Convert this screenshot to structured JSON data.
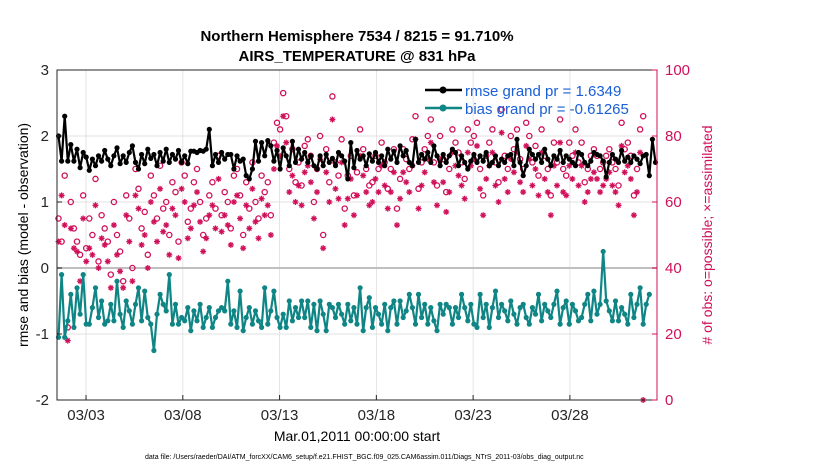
{
  "chart_data": {
    "type": "line",
    "title_line1": "Northern Hemisphere 7534 / 8215 = 91.710%",
    "title_line2": "AIRS_TEMPERATURE @ 831 hPa",
    "xlabel": "Mar.01,2011 00:00:00 start",
    "ylabel_left": "rmse and bias (model - observation)",
    "ylabel_right": "# of obs: o=possible; ×=assimilated",
    "footer": "data file: /Users/raeder/DAI/ATM_forcXX/CAM6_setup/f.e21.FHIST_BGC.f09_025.CAM6assim.011/Diags_NTrS_2011-03/obs_diag_output.nc",
    "xlim": [
      1.5,
      32.5
    ],
    "ylim_left": [
      -2,
      3
    ],
    "ylim_right": [
      0,
      100
    ],
    "x_tick_labels": [
      "03/03",
      "03/08",
      "03/13",
      "03/18",
      "03/23",
      "03/28"
    ],
    "x_tick_values": [
      3,
      8,
      13,
      18,
      23,
      28
    ],
    "y_left_ticks": [
      "-2",
      "-1",
      "0",
      "1",
      "2",
      "3"
    ],
    "y_left_tick_values": [
      -2,
      -1,
      0,
      1,
      2,
      3
    ],
    "y_right_ticks": [
      "0",
      "20",
      "40",
      "60",
      "80",
      "100"
    ],
    "y_right_tick_values": [
      0,
      20,
      40,
      60,
      80,
      100
    ],
    "legend": [
      {
        "name": "rmse",
        "label": "rmse grand pr = 1.6349"
      },
      {
        "name": "bias",
        "label": "bias grand pr = -0.61265"
      }
    ],
    "colors": {
      "rmse": "#000000",
      "bias": "#0f8585",
      "obs": "#d0105a",
      "zero": "#bfbfbf",
      "grid": "#dedede"
    },
    "series": [
      {
        "name": "rmse",
        "values": [
          2.0,
          1.62,
          2.3,
          1.62,
          1.87,
          1.62,
          1.8,
          1.52,
          1.75,
          1.68,
          1.48,
          1.65,
          1.55,
          1.7,
          1.62,
          1.78,
          1.65,
          1.55,
          1.7,
          1.82,
          1.58,
          1.7,
          1.6,
          1.75,
          1.85,
          1.6,
          1.5,
          1.72,
          1.58,
          1.8,
          1.66,
          1.72,
          1.55,
          1.75,
          1.62,
          1.8,
          1.6,
          1.72,
          1.65,
          1.78,
          1.6,
          1.7,
          1.58,
          1.77,
          1.77,
          1.75,
          1.78,
          1.77,
          1.8,
          2.1,
          1.55,
          1.72,
          1.6,
          1.75,
          1.65,
          1.72,
          1.72,
          1.5,
          1.7,
          1.62,
          1.65,
          1.4,
          1.35,
          1.5,
          1.92,
          1.62,
          1.9,
          1.7,
          1.93,
          1.85,
          1.62,
          1.78,
          1.5,
          1.82,
          1.7,
          1.55,
          1.92,
          1.6,
          1.8,
          1.65,
          1.75,
          1.6,
          1.7,
          1.55,
          1.5,
          1.7,
          1.55,
          1.72,
          1.6,
          1.66,
          1.55,
          1.75,
          1.7,
          1.62,
          1.35,
          1.9,
          1.52,
          1.78,
          1.65,
          1.7,
          1.55,
          1.73,
          1.62,
          1.75,
          1.6,
          1.7,
          1.55,
          1.8,
          1.65,
          1.77,
          1.6,
          1.85,
          1.7,
          1.78,
          1.6,
          1.55,
          1.95,
          1.6,
          1.72,
          1.65,
          1.75,
          1.6,
          1.85,
          1.7,
          1.55,
          1.72,
          1.6,
          1.7,
          1.8,
          1.75,
          1.55,
          1.7,
          1.6,
          1.5,
          1.62,
          1.72,
          1.6,
          1.7,
          1.62,
          1.75,
          1.55,
          1.6,
          1.7,
          1.55,
          1.65,
          1.6,
          1.7,
          1.72,
          1.55,
          1.95,
          1.6,
          1.4,
          1.55,
          1.8,
          1.72,
          1.65,
          1.72,
          1.6,
          1.8,
          1.65,
          1.55,
          1.7,
          1.65,
          1.78,
          1.6,
          1.7,
          1.65,
          1.6,
          1.55,
          1.75,
          1.72,
          1.6,
          1.55,
          1.62,
          1.75,
          1.72,
          1.7,
          1.62,
          1.38,
          1.6,
          1.72,
          1.65,
          1.6,
          1.78,
          1.62,
          1.68,
          1.6,
          1.7,
          1.65,
          1.58,
          1.7,
          1.72,
          1.4,
          1.95,
          1.6
        ]
      },
      {
        "name": "bias",
        "values": [
          -1.05,
          -0.1,
          -1.05,
          -0.8,
          -0.4,
          -0.9,
          -0.3,
          -0.7,
          -0.1,
          -0.85,
          -0.85,
          -0.6,
          -0.3,
          -0.75,
          -0.5,
          -0.85,
          -0.8,
          -0.55,
          -0.8,
          -0.2,
          -0.7,
          -0.9,
          -0.5,
          -0.65,
          -0.85,
          -0.55,
          -0.3,
          -0.8,
          -0.35,
          -0.75,
          -0.85,
          -1.25,
          -0.7,
          -0.4,
          -0.55,
          -0.65,
          -0.1,
          -0.85,
          -0.55,
          -0.85,
          -0.75,
          -0.8,
          -0.6,
          -0.95,
          -0.65,
          -0.8,
          -0.55,
          -0.9,
          -0.75,
          -0.6,
          -0.9,
          -0.75,
          -0.65,
          -0.6,
          -0.65,
          -0.2,
          -0.85,
          -0.65,
          -0.9,
          -0.35,
          -0.95,
          -0.75,
          -0.6,
          -0.85,
          -0.65,
          -0.8,
          -0.9,
          -0.3,
          -0.85,
          -0.65,
          -0.35,
          -0.75,
          -0.9,
          -0.7,
          -0.9,
          -0.5,
          -0.8,
          -0.6,
          -0.75,
          -0.5,
          -0.75,
          -0.5,
          -0.9,
          -0.55,
          -0.95,
          -0.5,
          -0.7,
          -0.95,
          -0.55,
          -0.6,
          -0.75,
          -0.55,
          -0.7,
          -0.85,
          -0.55,
          -0.8,
          -0.6,
          -0.85,
          -0.3,
          -0.95,
          -0.6,
          -0.45,
          -0.9,
          -0.6,
          -0.7,
          -0.85,
          -0.55,
          -0.95,
          -0.6,
          -0.5,
          -0.85,
          -0.5,
          -0.75,
          -0.65,
          -0.4,
          -0.6,
          -0.85,
          -0.4,
          -0.75,
          -0.55,
          -0.85,
          -0.6,
          -0.8,
          -0.95,
          -0.55,
          -0.7,
          -0.55,
          -0.6,
          -0.85,
          -0.6,
          -0.75,
          -0.4,
          -0.6,
          -0.8,
          -0.55,
          -0.85,
          -0.9,
          -0.4,
          -0.75,
          -0.55,
          -0.9,
          -0.6,
          -0.35,
          -0.75,
          -0.55,
          -0.65,
          -0.8,
          -0.5,
          -0.7,
          -0.85,
          -0.6,
          -0.55,
          -0.75,
          -0.85,
          -0.6,
          -0.7,
          -0.4,
          -0.8,
          -0.55,
          -0.65,
          -0.75,
          -0.55,
          -0.35,
          -0.85,
          -0.6,
          -0.5,
          -0.85,
          -0.55,
          -0.65,
          -0.8,
          -0.75,
          -0.55,
          -0.4,
          -0.8,
          -0.35,
          -0.7,
          -0.55,
          0.25,
          -0.5,
          -0.65,
          -0.8,
          -0.5,
          -0.8,
          -0.6,
          -0.7,
          -0.85,
          -0.4,
          -0.75,
          -0.55,
          -0.3,
          -0.85,
          -0.55,
          -0.4
        ]
      },
      {
        "name": "obs_possible",
        "values": [
          55,
          48,
          68,
          22,
          60,
          52,
          48,
          44,
          62,
          46,
          55,
          50,
          67,
          42,
          56,
          52,
          48,
          38,
          60,
          50,
          45,
          36,
          62,
          55,
          40,
          70,
          64,
          52,
          57,
          44,
          68,
          62,
          55,
          71,
          58,
          60,
          50,
          66,
          63,
          48,
          72,
          68,
          54,
          58,
          66,
          70,
          60,
          50,
          55,
          62,
          66,
          58,
          74,
          56,
          63,
          60,
          52,
          68,
          70,
          62,
          50,
          66,
          58,
          72,
          60,
          55,
          68,
          63,
          66,
          56,
          78,
          84,
          82,
          93,
          86,
          70,
          76,
          66,
          72,
          65,
          77,
          79,
          74,
          60,
          70,
          80,
          50,
          76,
          66,
          92,
          72,
          68,
          79,
          58,
          68,
          74,
          62,
          69,
          82,
          76,
          70,
          65,
          66,
          74,
          70,
          78,
          72,
          64,
          70,
          76,
          58,
          67,
          76,
          73,
          70,
          79,
          86,
          64,
          72,
          76,
          80,
          85,
          72,
          65,
          80,
          73,
          63,
          70,
          82,
          78,
          75,
          72,
          67,
          82,
          78,
          80,
          84,
          70,
          62,
          74,
          78,
          82,
          72,
          66,
          88,
          74,
          70,
          80,
          76,
          82,
          73,
          70,
          84,
          80,
          72,
          77,
          68,
          82,
          74,
          70,
          62,
          78,
          72,
          85,
          70,
          68,
          78,
          74,
          82,
          72,
          78,
          66,
          70,
          74,
          76,
          74,
          70,
          72,
          74,
          76,
          72,
          70,
          65,
          84,
          76,
          78,
          74,
          62,
          70,
          82,
          86
        ]
      },
      {
        "name": "obs_assimilated",
        "values": [
          48,
          62,
          53,
          18,
          52,
          46,
          45,
          36,
          55,
          42,
          46,
          44,
          59,
          40,
          49,
          47,
          42,
          34,
          53,
          44,
          39,
          34,
          56,
          48,
          36,
          62,
          58,
          47,
          50,
          40,
          60,
          54,
          48,
          64,
          51,
          53,
          44,
          58,
          56,
          43,
          64,
          60,
          49,
          52,
          59,
          63,
          54,
          45,
          49,
          56,
          59,
          52,
          67,
          51,
          56,
          53,
          47,
          60,
          62,
          55,
          46,
          59,
          52,
          64,
          54,
          49,
          61,
          56,
          59,
          50,
          70,
          77,
          74,
          86,
          78,
          63,
          68,
          60,
          65,
          59,
          69,
          71,
          66,
          55,
          63,
          73,
          46,
          69,
          60,
          85,
          64,
          61,
          72,
          53,
          61,
          67,
          56,
          62,
          74,
          68,
          63,
          59,
          60,
          67,
          63,
          71,
          65,
          58,
          63,
          69,
          53,
          61,
          69,
          66,
          63,
          71,
          79,
          58,
          65,
          69,
          73,
          78,
          66,
          59,
          73,
          66,
          57,
          63,
          75,
          71,
          68,
          65,
          61,
          75,
          71,
          73,
          77,
          64,
          56,
          67,
          71,
          75,
          65,
          60,
          81,
          67,
          63,
          73,
          69,
          75,
          66,
          63,
          77,
          73,
          65,
          70,
          62,
          75,
          67,
          63,
          56,
          71,
          65,
          78,
          63,
          62,
          71,
          67,
          75,
          65,
          71,
          60,
          63,
          67,
          69,
          67,
          63,
          65,
          67,
          69,
          65,
          63,
          59,
          77,
          69,
          71,
          67,
          56,
          63,
          75,
          0
        ]
      }
    ]
  }
}
